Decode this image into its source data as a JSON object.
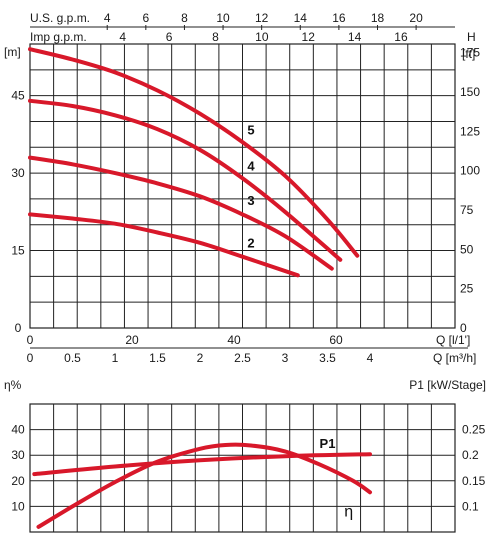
{
  "top_header": {
    "usgpm_label": "U.S. g.p.m.",
    "usgpm_ticks": [
      "4",
      "6",
      "8",
      "10",
      "12",
      "14",
      "16",
      "18",
      "20"
    ],
    "impgpm_label": "Imp g.p.m.",
    "impgpm_ticks": [
      "4",
      "6",
      "8",
      "10",
      "12",
      "14",
      "16"
    ],
    "head_letter": "H"
  },
  "chart_data": [
    {
      "type": "line",
      "title": "",
      "y_left_unit": "[m]",
      "y_left_ticks": [
        "0",
        "15",
        "30",
        "45"
      ],
      "y_left_range": [
        0,
        55
      ],
      "y_right_unit": "[ft]",
      "y_right_ticks": [
        "0",
        "25",
        "50",
        "75",
        "100",
        "125",
        "150",
        "175"
      ],
      "x_lpm_label": "Q [l/1']",
      "x_lpm_ticks": [
        "0",
        "20",
        "40",
        "60"
      ],
      "x_m3h_label": "Q [m³/h]",
      "x_m3h_ticks": [
        "0",
        "0.5",
        "1",
        "1.5",
        "2",
        "2.5",
        "3",
        "3.5",
        "4"
      ],
      "x_range_m3h": [
        0,
        5
      ],
      "grid": true,
      "series": [
        {
          "name": "2",
          "x": [
            0,
            0.5,
            1.0,
            1.5,
            2.0,
            2.5,
            3.15
          ],
          "y": [
            22,
            21.2,
            20.2,
            18.5,
            16.5,
            13.8,
            10.2
          ]
        },
        {
          "name": "3",
          "x": [
            0,
            0.5,
            1.0,
            1.5,
            2.0,
            2.5,
            3.0,
            3.55
          ],
          "y": [
            33,
            31.7,
            30,
            28,
            25.5,
            22,
            17.8,
            11.5
          ]
        },
        {
          "name": "4",
          "x": [
            0,
            0.5,
            1.0,
            1.5,
            2.0,
            2.5,
            3.0,
            3.65
          ],
          "y": [
            44,
            43,
            41.2,
            38.5,
            34.5,
            29,
            22.5,
            13.2
          ]
        },
        {
          "name": "5",
          "x": [
            0,
            0.5,
            1.0,
            1.5,
            2.0,
            2.5,
            3.0,
            3.5,
            3.85
          ],
          "y": [
            54,
            52,
            49.5,
            46,
            41.5,
            36,
            29.5,
            21,
            14
          ]
        }
      ]
    },
    {
      "type": "line",
      "title": "",
      "y_left_unit": "η%",
      "y_left_ticks": [
        "10",
        "20",
        "30",
        "40"
      ],
      "y_left_range": [
        0,
        50
      ],
      "y_right_unit": "P1 [kW/Stage]",
      "y_right_ticks": [
        "0.1",
        "0.15",
        "0.2",
        "0.25"
      ],
      "y_right_range": [
        0.05,
        0.3
      ],
      "x_range_m3h": [
        0,
        5
      ],
      "grid": true,
      "series": [
        {
          "name": "η",
          "x": [
            0.1,
            0.5,
            1.0,
            1.5,
            2.0,
            2.3,
            2.6,
            3.0,
            3.4,
            3.8,
            4.0
          ],
          "y": [
            2,
            10,
            19.5,
            27.5,
            32.5,
            34,
            33.8,
            31.5,
            26.5,
            20,
            15.5
          ]
        },
        {
          "name": "P1",
          "x": [
            0.05,
            1.0,
            2.0,
            3.0,
            4.0
          ],
          "y_p1": [
            0.163,
            0.178,
            0.19,
            0.198,
            0.202
          ]
        }
      ]
    }
  ]
}
